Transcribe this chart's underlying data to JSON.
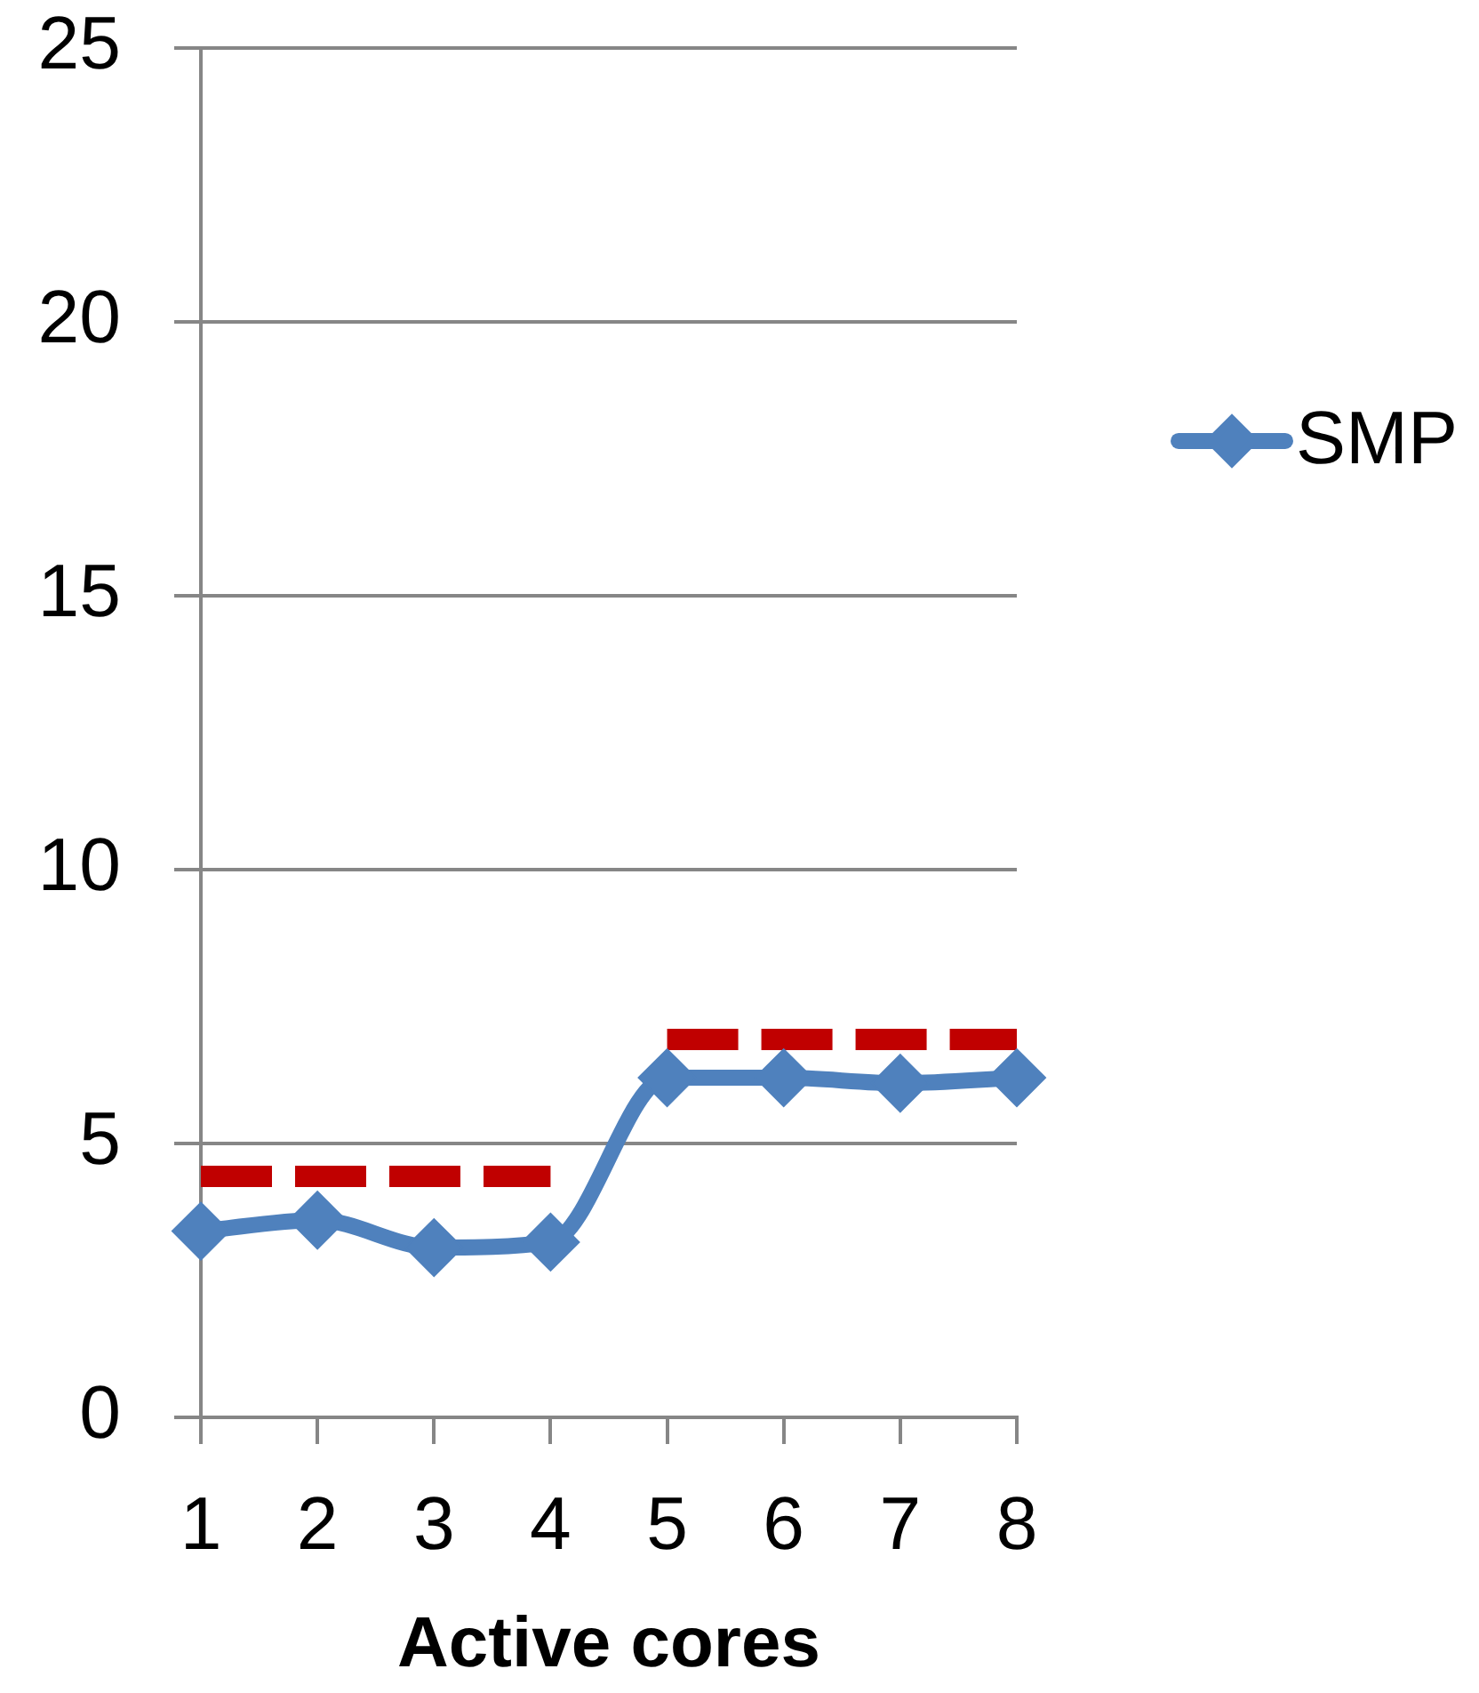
{
  "chart_data": {
    "type": "line",
    "xlabel": "Active cores",
    "categories": [
      "1",
      "2",
      "3",
      "4",
      "5",
      "6",
      "7",
      "8"
    ],
    "series": [
      {
        "name": "SMP",
        "color": "#4f81bd",
        "values": [
          3.4,
          3.6,
          3.1,
          3.2,
          6.2,
          6.2,
          6.1,
          6.2
        ],
        "marker": "diamond",
        "line_style": "solid"
      },
      {
        "color": "#c00000",
        "values": [
          4.4,
          4.4,
          4.4,
          4.4,
          null,
          null,
          null,
          null
        ],
        "marker": "none",
        "line_style": "dashed"
      },
      {
        "color": "#c00000",
        "values": [
          null,
          null,
          null,
          null,
          6.9,
          6.9,
          6.9,
          6.9
        ],
        "marker": "none",
        "line_style": "dashed"
      }
    ],
    "ylim": [
      0,
      25
    ],
    "yticks": [
      0,
      5,
      10,
      15,
      20,
      25
    ],
    "grid": "y",
    "legend": "right"
  }
}
